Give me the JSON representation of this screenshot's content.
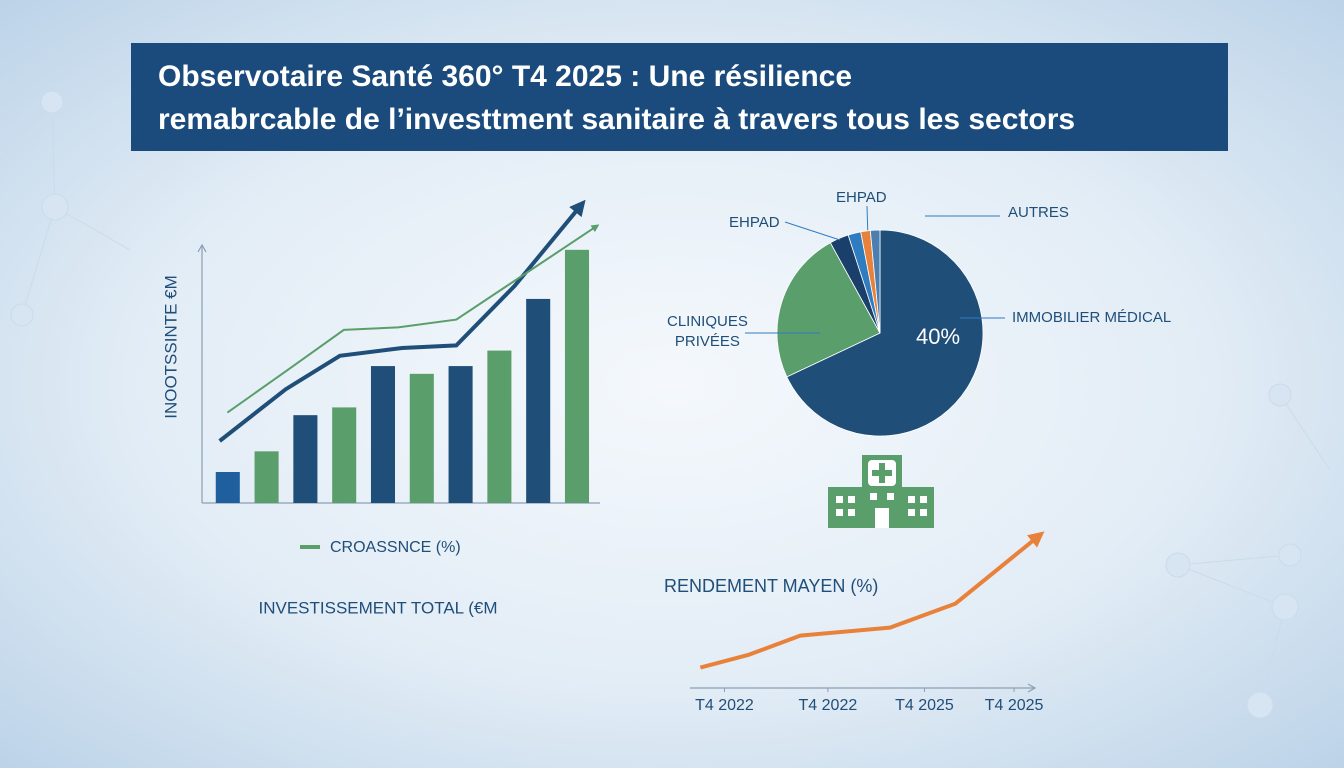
{
  "title_lines": [
    "Observotaire Santé 360°  T4 2025 : Une résilience",
    "remabrcable de l’investtment sanitaire à travers tous les sectors"
  ],
  "chart_data": [
    {
      "type": "combo",
      "y_label": "INOOTSSINTE €M",
      "x_label": "INVESTISSEMENT TOTAL (€M",
      "xlim": [
        0,
        10
      ],
      "ylim": [
        0,
        120
      ],
      "series": [
        {
          "kind": "bar",
          "colors": [
            "#1f5f9e",
            "#5a9e6b",
            "#1f4e79",
            "#5a9e6b",
            "#1f4e79",
            "#5a9e6b",
            "#1f4e79",
            "#5a9e6b",
            "#1f4e79",
            "#5a9e6b"
          ],
          "values": [
            12,
            20,
            34,
            37,
            53,
            50,
            53,
            59,
            79,
            98
          ]
        },
        {
          "kind": "line",
          "color": "#1f4e79",
          "x": [
            0.3,
            2.0,
            3.4,
            5.0,
            6.4,
            7.9,
            9.6
          ],
          "values": [
            24,
            44,
            57,
            60,
            61,
            84,
            115
          ]
        },
        {
          "kind": "line",
          "name": "CROASSNCE (%)",
          "color": "#5a9e6b",
          "x": [
            0.5,
            2.1,
            3.5,
            4.9,
            6.4,
            8.0,
            10.0
          ],
          "values": [
            35,
            52,
            67,
            68,
            71,
            87,
            107
          ]
        }
      ]
    },
    {
      "type": "pie",
      "center_annotation": "40%",
      "labels": [
        "IMMOBILIER MÉDICAL",
        "CLINIQUES\nPRIVÉES",
        "EHPAD",
        "EHPAD",
        null,
        "AUTRES"
      ],
      "values": [
        68,
        24,
        3,
        2,
        1.5,
        1.5
      ],
      "colors": [
        "#1f4e79",
        "#5a9e6b",
        "#1a3f6a",
        "#2f7cc0",
        "#e8823a",
        "#4a7fb0"
      ]
    },
    {
      "type": "line",
      "title": "RENDEMENT MAYEN (%)",
      "color": "#e8823a",
      "xlim": [
        0,
        10.5
      ],
      "ylim": [
        0,
        10
      ],
      "x": [
        0.3,
        1.7,
        3.2,
        5.8,
        7.7,
        10.1
      ],
      "values": [
        1.4,
        2.2,
        3.4,
        3.9,
        5.4,
        9.6
      ],
      "xticks": [
        {
          "value": 1,
          "label": "T4 2022"
        },
        {
          "value": 4,
          "label": "T4 2022"
        },
        {
          "value": 6.8,
          "label": "T4 2025"
        },
        {
          "value": 9.4,
          "label": "T4 2025"
        }
      ]
    }
  ]
}
